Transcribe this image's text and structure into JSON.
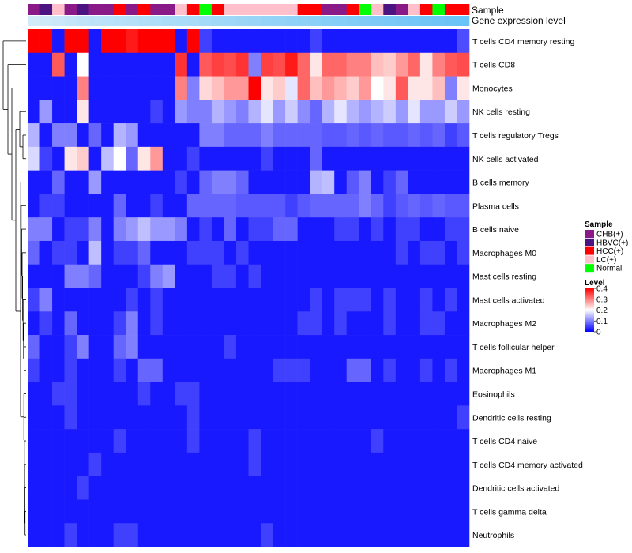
{
  "chart_data": {
    "type": "heatmap",
    "title": "",
    "annotation_tracks": [
      "Sample",
      "Gene expression level"
    ],
    "rows": [
      "T cells CD4 memory resting",
      "T cells CD8",
      "Monocytes",
      "NK cells resting",
      "T cells regulatory  Tregs",
      "NK cells activated",
      "B cells memory",
      "Plasma cells",
      "B cells naive",
      "Macrophages M0",
      "Mast cells resting",
      "Mast cells activated",
      "Macrophages M2",
      "T cells follicular helper",
      "Macrophages M1",
      "Eosinophils",
      "Dendritic cells resting",
      "T cells CD4 naive",
      "T cells CD4 memory activated",
      "Dendritic cells activated",
      "T cells gamma delta",
      "Neutrophils"
    ],
    "sample_groups": [
      "CHB",
      "HBVC",
      "LC",
      "CHB",
      "HBVC",
      "CHB",
      "CHB",
      "HCC",
      "CHB",
      "HCC",
      "CHB",
      "CHB",
      "LC",
      "HCC",
      "Normal",
      "HCC",
      "LC",
      "LC",
      "LC",
      "LC",
      "LC",
      "LC",
      "HCC",
      "HCC",
      "CHB",
      "CHB",
      "HCC",
      "Normal",
      "LC",
      "HBVC",
      "CHB",
      "LC",
      "HCC",
      "Normal",
      "HCC",
      "HCC"
    ],
    "expression_track": [
      0.05,
      0.08,
      0.11,
      0.14,
      0.17,
      0.2,
      0.22,
      0.24,
      0.26,
      0.28,
      0.3,
      0.32,
      0.34,
      0.36,
      0.38,
      0.4,
      0.42,
      0.44,
      0.46,
      0.48,
      0.5,
      0.52,
      0.54,
      0.56,
      0.58,
      0.6,
      0.62,
      0.64,
      0.66,
      0.68,
      0.7,
      0.72,
      0.74,
      0.76,
      0.78,
      0.8
    ],
    "values": [
      [
        0.4,
        0.42,
        0.02,
        0.4,
        0.4,
        0.02,
        0.4,
        0.4,
        0.38,
        0.4,
        0.4,
        0.4,
        0.02,
        0.4,
        0.05,
        0.02,
        0.02,
        0.02,
        0.02,
        0.02,
        0.02,
        0.02,
        0.02,
        0.05,
        0.02,
        0.02,
        0.02,
        0.02,
        0.02,
        0.02,
        0.02,
        0.02,
        0.02,
        0.02,
        0.02,
        0.06
      ],
      [
        0.02,
        0.02,
        0.33,
        0.02,
        0.2,
        0.02,
        0.02,
        0.02,
        0.02,
        0.02,
        0.02,
        0.02,
        0.36,
        0.02,
        0.33,
        0.35,
        0.34,
        0.36,
        0.1,
        0.35,
        0.34,
        0.38,
        0.32,
        0.22,
        0.32,
        0.32,
        0.3,
        0.3,
        0.25,
        0.24,
        0.28,
        0.32,
        0.22,
        0.3,
        0.33,
        0.34
      ],
      [
        0.02,
        0.02,
        0.02,
        0.02,
        0.3,
        0.02,
        0.02,
        0.02,
        0.02,
        0.02,
        0.02,
        0.02,
        0.3,
        0.1,
        0.23,
        0.25,
        0.28,
        0.28,
        0.4,
        0.22,
        0.24,
        0.18,
        0.32,
        0.25,
        0.28,
        0.26,
        0.24,
        0.28,
        0.2,
        0.22,
        0.33,
        0.22,
        0.22,
        0.25,
        0.1,
        0.22
      ],
      [
        0.02,
        0.12,
        0.02,
        0.02,
        0.22,
        0.02,
        0.02,
        0.02,
        0.02,
        0.02,
        0.05,
        0.02,
        0.12,
        0.1,
        0.1,
        0.14,
        0.12,
        0.1,
        0.14,
        0.18,
        0.12,
        0.16,
        0.11,
        0.08,
        0.14,
        0.18,
        0.14,
        0.12,
        0.14,
        0.16,
        0.12,
        0.18,
        0.12,
        0.12,
        0.16,
        0.12
      ],
      [
        0.14,
        0.02,
        0.1,
        0.1,
        0.02,
        0.08,
        0.02,
        0.14,
        0.12,
        0.02,
        0.02,
        0.02,
        0.02,
        0.02,
        0.1,
        0.1,
        0.08,
        0.08,
        0.08,
        0.1,
        0.08,
        0.08,
        0.08,
        0.08,
        0.07,
        0.07,
        0.08,
        0.07,
        0.08,
        0.07,
        0.07,
        0.08,
        0.07,
        0.08,
        0.05,
        0.07
      ],
      [
        0.17,
        0.05,
        0.02,
        0.22,
        0.24,
        0.02,
        0.15,
        0.2,
        0.08,
        0.22,
        0.28,
        0.02,
        0.02,
        0.05,
        0.02,
        0.02,
        0.02,
        0.02,
        0.02,
        0.05,
        0.02,
        0.02,
        0.02,
        0.08,
        0.02,
        0.02,
        0.02,
        0.02,
        0.02,
        0.02,
        0.02,
        0.02,
        0.02,
        0.02,
        0.02,
        0.02
      ],
      [
        0.02,
        0.02,
        0.08,
        0.02,
        0.02,
        0.12,
        0.02,
        0.02,
        0.02,
        0.02,
        0.02,
        0.02,
        0.05,
        0.02,
        0.08,
        0.1,
        0.1,
        0.08,
        0.02,
        0.02,
        0.02,
        0.02,
        0.02,
        0.14,
        0.15,
        0.02,
        0.07,
        0.1,
        0.02,
        0.05,
        0.08,
        0.02,
        0.02,
        0.02,
        0.02,
        0.02
      ],
      [
        0.02,
        0.05,
        0.05,
        0.02,
        0.02,
        0.02,
        0.02,
        0.08,
        0.02,
        0.02,
        0.05,
        0.02,
        0.02,
        0.08,
        0.08,
        0.08,
        0.08,
        0.07,
        0.07,
        0.07,
        0.07,
        0.05,
        0.07,
        0.08,
        0.08,
        0.08,
        0.08,
        0.1,
        0.08,
        0.05,
        0.07,
        0.08,
        0.07,
        0.08,
        0.07,
        0.07
      ],
      [
        0.1,
        0.1,
        0.02,
        0.05,
        0.05,
        0.1,
        0.02,
        0.1,
        0.12,
        0.15,
        0.12,
        0.12,
        0.1,
        0.02,
        0.05,
        0.02,
        0.08,
        0.02,
        0.05,
        0.05,
        0.08,
        0.08,
        0.02,
        0.02,
        0.02,
        0.05,
        0.05,
        0.02,
        0.05,
        0.02,
        0.05,
        0.05,
        0.02,
        0.02,
        0.05,
        0.05
      ],
      [
        0.08,
        0.02,
        0.05,
        0.05,
        0.02,
        0.15,
        0.02,
        0.05,
        0.05,
        0.08,
        0.02,
        0.02,
        0.02,
        0.05,
        0.05,
        0.05,
        0.02,
        0.05,
        0.02,
        0.02,
        0.02,
        0.02,
        0.02,
        0.02,
        0.02,
        0.02,
        0.02,
        0.02,
        0.02,
        0.02,
        0.05,
        0.02,
        0.05,
        0.05,
        0.02,
        0.05
      ],
      [
        0.02,
        0.02,
        0.02,
        0.1,
        0.1,
        0.08,
        0.02,
        0.02,
        0.02,
        0.05,
        0.1,
        0.12,
        0.02,
        0.02,
        0.02,
        0.05,
        0.05,
        0.02,
        0.05,
        0.02,
        0.02,
        0.02,
        0.02,
        0.02,
        0.02,
        0.02,
        0.02,
        0.02,
        0.02,
        0.02,
        0.02,
        0.02,
        0.02,
        0.02,
        0.02,
        0.02
      ],
      [
        0.05,
        0.1,
        0.02,
        0.02,
        0.02,
        0.02,
        0.02,
        0.02,
        0.05,
        0.02,
        0.05,
        0.02,
        0.02,
        0.02,
        0.02,
        0.02,
        0.02,
        0.02,
        0.02,
        0.02,
        0.02,
        0.02,
        0.02,
        0.05,
        0.02,
        0.05,
        0.05,
        0.05,
        0.02,
        0.05,
        0.02,
        0.02,
        0.05,
        0.02,
        0.05,
        0.02
      ],
      [
        0.02,
        0.05,
        0.02,
        0.08,
        0.02,
        0.02,
        0.02,
        0.05,
        0.1,
        0.02,
        0.05,
        0.02,
        0.02,
        0.02,
        0.02,
        0.02,
        0.02,
        0.02,
        0.02,
        0.02,
        0.02,
        0.02,
        0.05,
        0.05,
        0.02,
        0.05,
        0.02,
        0.02,
        0.02,
        0.05,
        0.02,
        0.02,
        0.05,
        0.05,
        0.02,
        0.02
      ],
      [
        0.08,
        0.02,
        0.02,
        0.05,
        0.1,
        0.02,
        0.02,
        0.08,
        0.1,
        0.02,
        0.02,
        0.02,
        0.02,
        0.02,
        0.02,
        0.02,
        0.05,
        0.02,
        0.02,
        0.02,
        0.02,
        0.02,
        0.02,
        0.02,
        0.02,
        0.02,
        0.02,
        0.02,
        0.02,
        0.02,
        0.02,
        0.02,
        0.02,
        0.02,
        0.02,
        0.02
      ],
      [
        0.05,
        0.02,
        0.02,
        0.05,
        0.02,
        0.02,
        0.02,
        0.05,
        0.02,
        0.08,
        0.08,
        0.02,
        0.02,
        0.02,
        0.02,
        0.02,
        0.02,
        0.02,
        0.02,
        0.02,
        0.05,
        0.05,
        0.05,
        0.02,
        0.02,
        0.02,
        0.08,
        0.08,
        0.02,
        0.05,
        0.02,
        0.02,
        0.05,
        0.02,
        0.05,
        0.02
      ],
      [
        0.02,
        0.02,
        0.05,
        0.05,
        0.02,
        0.02,
        0.02,
        0.02,
        0.02,
        0.05,
        0.02,
        0.02,
        0.05,
        0.05,
        0.02,
        0.02,
        0.02,
        0.02,
        0.02,
        0.02,
        0.02,
        0.02,
        0.02,
        0.02,
        0.02,
        0.02,
        0.02,
        0.02,
        0.02,
        0.02,
        0.02,
        0.02,
        0.02,
        0.02,
        0.02,
        0.02
      ],
      [
        0.02,
        0.02,
        0.02,
        0.05,
        0.02,
        0.02,
        0.02,
        0.02,
        0.02,
        0.02,
        0.02,
        0.02,
        0.02,
        0.05,
        0.02,
        0.02,
        0.02,
        0.02,
        0.02,
        0.02,
        0.02,
        0.02,
        0.02,
        0.02,
        0.02,
        0.02,
        0.02,
        0.02,
        0.02,
        0.02,
        0.02,
        0.02,
        0.02,
        0.02,
        0.02,
        0.05
      ],
      [
        0.02,
        0.02,
        0.02,
        0.02,
        0.02,
        0.02,
        0.02,
        0.05,
        0.02,
        0.02,
        0.02,
        0.02,
        0.02,
        0.05,
        0.02,
        0.02,
        0.02,
        0.02,
        0.05,
        0.02,
        0.02,
        0.02,
        0.02,
        0.02,
        0.02,
        0.02,
        0.02,
        0.02,
        0.05,
        0.02,
        0.02,
        0.02,
        0.02,
        0.02,
        0.02,
        0.02
      ],
      [
        0.02,
        0.02,
        0.02,
        0.02,
        0.02,
        0.05,
        0.02,
        0.02,
        0.02,
        0.02,
        0.02,
        0.02,
        0.02,
        0.02,
        0.02,
        0.02,
        0.02,
        0.02,
        0.05,
        0.02,
        0.02,
        0.02,
        0.02,
        0.02,
        0.02,
        0.02,
        0.02,
        0.02,
        0.02,
        0.02,
        0.02,
        0.02,
        0.02,
        0.02,
        0.02,
        0.02
      ],
      [
        0.02,
        0.02,
        0.02,
        0.02,
        0.05,
        0.02,
        0.02,
        0.02,
        0.02,
        0.02,
        0.02,
        0.02,
        0.02,
        0.02,
        0.02,
        0.02,
        0.02,
        0.02,
        0.02,
        0.02,
        0.02,
        0.02,
        0.02,
        0.02,
        0.02,
        0.02,
        0.02,
        0.02,
        0.02,
        0.02,
        0.02,
        0.02,
        0.02,
        0.02,
        0.02,
        0.02
      ],
      [
        0.02,
        0.02,
        0.02,
        0.02,
        0.02,
        0.02,
        0.02,
        0.02,
        0.02,
        0.02,
        0.02,
        0.02,
        0.02,
        0.02,
        0.02,
        0.02,
        0.02,
        0.02,
        0.02,
        0.02,
        0.02,
        0.02,
        0.02,
        0.02,
        0.02,
        0.02,
        0.02,
        0.02,
        0.02,
        0.02,
        0.02,
        0.02,
        0.02,
        0.02,
        0.02,
        0.02
      ],
      [
        0.02,
        0.02,
        0.02,
        0.05,
        0.02,
        0.02,
        0.02,
        0.05,
        0.05,
        0.02,
        0.02,
        0.02,
        0.02,
        0.02,
        0.02,
        0.02,
        0.02,
        0.02,
        0.02,
        0.05,
        0.02,
        0.02,
        0.02,
        0.02,
        0.02,
        0.02,
        0.02,
        0.02,
        0.02,
        0.02,
        0.02,
        0.02,
        0.02,
        0.02,
        0.02,
        0.02
      ]
    ]
  },
  "legend": {
    "sample_title": "Sample",
    "sample_items": [
      {
        "key": "CHB",
        "label": "CHB(+)",
        "color": "#8B1A89"
      },
      {
        "key": "HBVC",
        "label": "HBVC(+)",
        "color": "#4B1480"
      },
      {
        "key": "HCC",
        "label": "HCC(+)",
        "color": "#FF0000"
      },
      {
        "key": "LC",
        "label": "LC(+)",
        "color": "#FFC0CB"
      },
      {
        "key": "Normal",
        "label": "Normal",
        "color": "#00FF00"
      }
    ],
    "level_title": "Level",
    "level_ticks": [
      "0.4",
      "0.3",
      "0.2",
      "0.1",
      "0"
    ],
    "level_tick_values": [
      0.4,
      0.3,
      0.2,
      0.1,
      0
    ]
  },
  "colors": {
    "low": "#0000FF",
    "mid": "#FFFFFF",
    "high": "#FF0000",
    "expr_low": "#D9EEF9",
    "expr_high": "#4DB8F5"
  },
  "scale": {
    "min": 0,
    "mid": 0.2,
    "max": 0.4
  }
}
